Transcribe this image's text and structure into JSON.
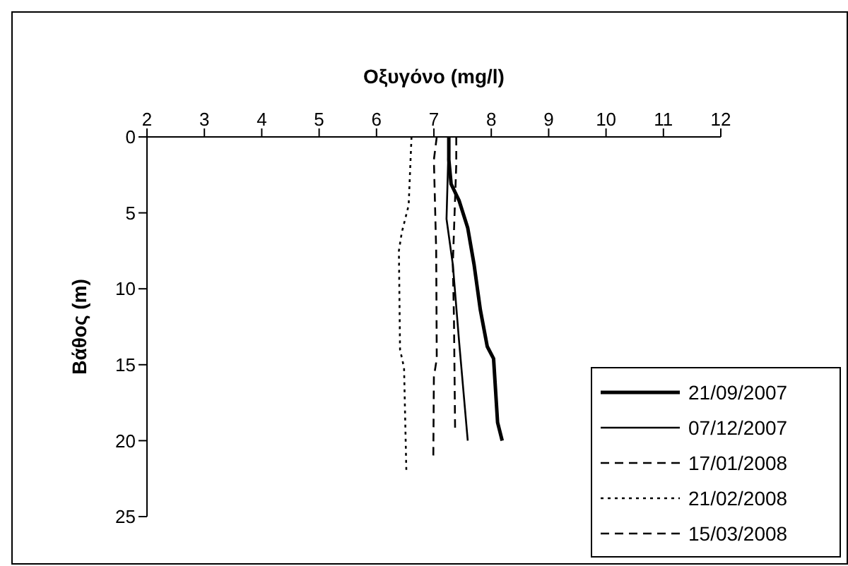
{
  "chart_data": {
    "type": "line",
    "xlabel": "Οξυγόνο (mg/l)",
    "ylabel": "Βάθος (m)",
    "xlim": [
      2,
      12
    ],
    "xticks": [
      2,
      3,
      4,
      5,
      6,
      7,
      8,
      9,
      10,
      11,
      12
    ],
    "ylim": [
      25,
      0
    ],
    "yticks": [
      0,
      5,
      10,
      15,
      20,
      25
    ],
    "legend": "bottom right",
    "marker": "none",
    "series": [
      {
        "name": "21/09/2007",
        "color": "#000000",
        "line_style": "solid",
        "x": [
          7.26,
          7.26,
          7.3,
          7.44,
          7.59,
          7.7,
          7.81,
          7.93,
          8.04,
          8.11,
          8.19
        ],
        "values": [
          0,
          1.5,
          3.1,
          4.2,
          6,
          8.4,
          11.4,
          13.8,
          14.6,
          18.8,
          20
        ]
      },
      {
        "name": "07/12/2007",
        "color": "#000000",
        "line_style": "solid",
        "x": [
          7.26,
          7.22,
          7.33,
          7.44,
          7.59
        ],
        "values": [
          0,
          5.4,
          8.4,
          13.5,
          20
        ]
      },
      {
        "name": "17/01/2008",
        "color": "#000000",
        "line_style": "dashed",
        "x": [
          7.05,
          7,
          7.04,
          7.05,
          7,
          6.99
        ],
        "values": [
          0,
          1.5,
          7.5,
          14.6,
          15.8,
          21
        ]
      },
      {
        "name": "21/02/2008",
        "color": "#000000",
        "line_style": "dotted",
        "x": [
          6.61,
          6.56,
          6.44,
          6.39,
          6.41,
          6.48,
          6.52
        ],
        "values": [
          0,
          4.5,
          6.3,
          7.5,
          14,
          15.2,
          22
        ]
      },
      {
        "name": "15/03/2008",
        "color": "#000000",
        "line_style": "dashed",
        "x": [
          7.39,
          7.39,
          7.33,
          7.35,
          7.37
        ],
        "values": [
          0,
          1.8,
          8.4,
          12,
          19.4
        ]
      }
    ]
  }
}
